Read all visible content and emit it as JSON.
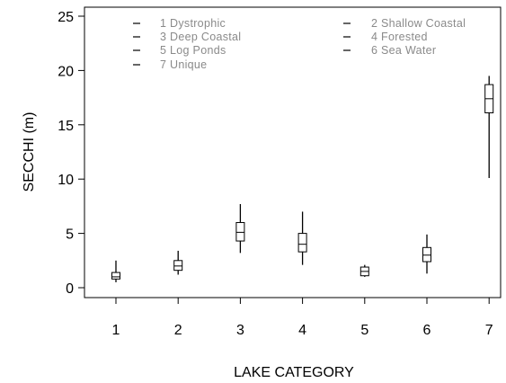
{
  "chart_data": {
    "type": "box",
    "xlabel": "LAKE CATEGORY",
    "ylabel": "SECCHI (m)",
    "categories": [
      "1",
      "2",
      "3",
      "4",
      "5",
      "6",
      "7"
    ],
    "ylim": [
      0,
      25
    ],
    "yticks": [
      0,
      5,
      10,
      15,
      20,
      25
    ],
    "grid": false,
    "legend_position": "top",
    "legend": [
      "1 Dystrophic",
      "2 Shallow Coastal",
      "3 Deep Coastal",
      "4 Forested",
      "5 Log Ponds",
      "6 Sea Water",
      "7 Unique"
    ],
    "boxes": [
      {
        "category": "1",
        "min": 0.5,
        "q1": 0.8,
        "median": 1.0,
        "q3": 1.4,
        "max": 2.5
      },
      {
        "category": "2",
        "min": 1.2,
        "q1": 1.6,
        "median": 2.0,
        "q3": 2.5,
        "max": 3.4
      },
      {
        "category": "3",
        "min": 3.2,
        "q1": 4.3,
        "median": 5.1,
        "q3": 6.0,
        "max": 7.7
      },
      {
        "category": "4",
        "min": 2.1,
        "q1": 3.3,
        "median": 4.0,
        "q3": 5.0,
        "max": 7.0
      },
      {
        "category": "5",
        "min": 1.0,
        "q1": 1.1,
        "median": 1.5,
        "q3": 1.9,
        "max": 2.1
      },
      {
        "category": "6",
        "min": 1.3,
        "q1": 2.4,
        "median": 3.0,
        "q3": 3.7,
        "max": 4.9
      },
      {
        "category": "7",
        "min": 10.1,
        "q1": 16.1,
        "median": 17.4,
        "q3": 18.7,
        "max": 19.5
      }
    ]
  }
}
